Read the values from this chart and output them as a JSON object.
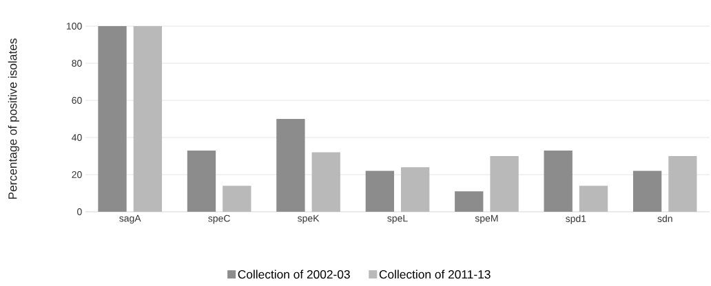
{
  "chart_data": {
    "type": "bar",
    "ylabel": "Percentage of positive isolates",
    "categories": [
      "sagA",
      "speC",
      "speK",
      "speL",
      "speM",
      "spd1",
      "sdn"
    ],
    "series": [
      {
        "name": "Collection of 2002-03",
        "color": "#8c8c8c",
        "values": [
          100,
          33,
          50,
          22,
          11,
          33,
          22
        ]
      },
      {
        "name": "Collection of 2011-13",
        "color": "#b9b9b9",
        "values": [
          100,
          14,
          32,
          24,
          30,
          14,
          30
        ]
      }
    ],
    "ylim": [
      0,
      100
    ],
    "yticks": [
      0,
      20,
      40,
      60,
      80,
      100
    ],
    "grid": "y",
    "legend": "bottom"
  }
}
